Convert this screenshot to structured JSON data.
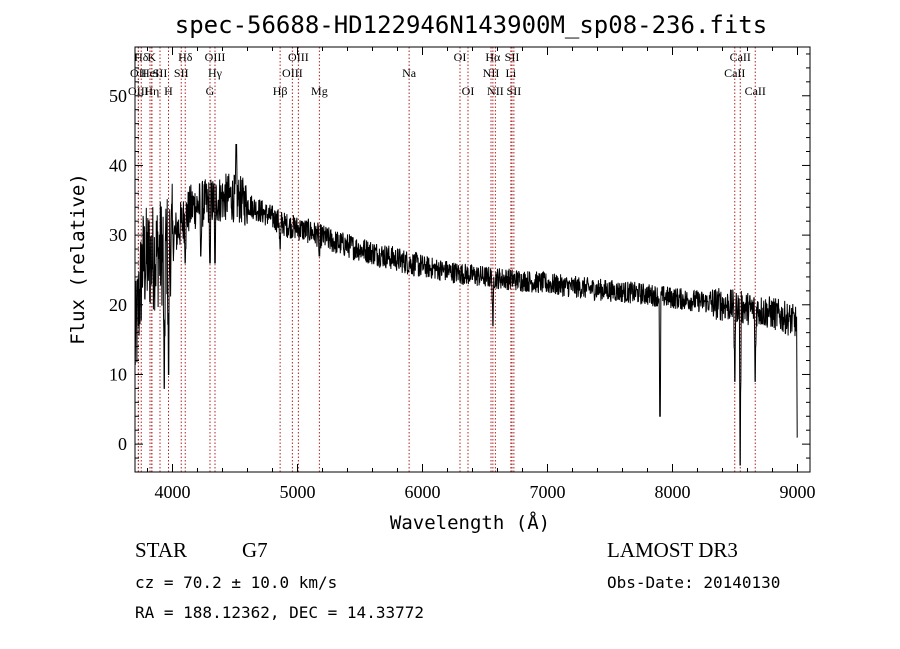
{
  "chart_data": {
    "type": "line",
    "title": "spec-56688-HD122946N143900M_sp08-236.fits",
    "xlabel": "Wavelength (Å)",
    "ylabel": "Flux (relative)",
    "xlim": [
      3700,
      9100
    ],
    "ylim": [
      -4,
      57
    ],
    "x_ticks": [
      4000,
      5000,
      6000,
      7000,
      8000,
      9000
    ],
    "x_tick_labels": [
      "4000",
      "5000",
      "6000",
      "7000",
      "8000",
      "9000"
    ],
    "y_ticks": [
      0,
      10,
      20,
      30,
      40,
      50
    ],
    "y_tick_labels": [
      "0",
      "10",
      "20",
      "30",
      "40",
      "50"
    ],
    "continuum": {
      "x": [
        3700,
        3760,
        3850,
        3950,
        4050,
        4150,
        4250,
        4350,
        4450,
        4550,
        4700,
        4900,
        5100,
        5300,
        5500,
        5700,
        6000,
        6300,
        6500,
        6800,
        7100,
        7400,
        7700,
        8000,
        8300,
        8600,
        8800,
        9000
      ],
      "y": [
        14,
        26,
        27,
        28,
        31,
        34,
        34.5,
        35,
        35.5,
        35,
        33.5,
        31.5,
        30.5,
        29,
        28,
        27,
        25.5,
        24.5,
        24,
        23.5,
        22.8,
        22.2,
        21.7,
        21,
        20.3,
        19.5,
        18.8,
        17.5
      ]
    },
    "features": [
      {
        "x": 3934,
        "y": 8
      },
      {
        "x": 3968,
        "y": 10
      },
      {
        "x": 4102,
        "y": 26
      },
      {
        "x": 4227,
        "y": 27
      },
      {
        "x": 4300,
        "y": 26
      },
      {
        "x": 4340,
        "y": 26
      },
      {
        "x": 4510,
        "y": 43
      },
      {
        "x": 4861,
        "y": 28
      },
      {
        "x": 5175,
        "y": 27
      },
      {
        "x": 6563,
        "y": 17
      },
      {
        "x": 7900,
        "y": 4
      },
      {
        "x": 8498,
        "y": 9
      },
      {
        "x": 8542,
        "y": -3
      },
      {
        "x": 8662,
        "y": 9
      },
      {
        "x": 9000,
        "y": 1
      }
    ],
    "spectral_lines": [
      {
        "label": "Hδ",
        "x": 3750,
        "row": 0
      },
      {
        "label": "OII",
        "x": 3727,
        "row": 1
      },
      {
        "label": "OIII",
        "x": 3727,
        "row": 2
      },
      {
        "label": "K",
        "x": 3834,
        "row": 0
      },
      {
        "label": "HeI",
        "x": 3820,
        "row": 1
      },
      {
        "label": "Hη",
        "x": 3835,
        "row": 2
      },
      {
        "label": "SII",
        "x": 3900,
        "row": 1
      },
      {
        "label": "H",
        "x": 3968,
        "row": 2
      },
      {
        "label": "Hδ",
        "x": 4102,
        "row": 0
      },
      {
        "label": "SII",
        "x": 4070,
        "row": 1
      },
      {
        "label": "OIII",
        "x": 4340,
        "row": 0
      },
      {
        "label": "Hγ",
        "x": 4340,
        "row": 1
      },
      {
        "label": "G",
        "x": 4300,
        "row": 2
      },
      {
        "label": "OIII",
        "x": 5007,
        "row": 0
      },
      {
        "label": "OIII",
        "x": 4959,
        "row": 1
      },
      {
        "label": "Hβ",
        "x": 4861,
        "row": 2
      },
      {
        "label": "Mg",
        "x": 5175,
        "row": 2
      },
      {
        "label": "Na",
        "x": 5893,
        "row": 1
      },
      {
        "label": "OI",
        "x": 6300,
        "row": 0
      },
      {
        "label": "OI",
        "x": 6364,
        "row": 2
      },
      {
        "label": "Hα",
        "x": 6563,
        "row": 0
      },
      {
        "label": "NII",
        "x": 6548,
        "row": 1
      },
      {
        "label": "NII",
        "x": 6583,
        "row": 2
      },
      {
        "label": "SII",
        "x": 6716,
        "row": 0
      },
      {
        "label": "Li",
        "x": 6707,
        "row": 1
      },
      {
        "label": "SII",
        "x": 6731,
        "row": 2
      },
      {
        "label": "CaII",
        "x": 8542,
        "row": 0
      },
      {
        "label": "CaII",
        "x": 8498,
        "row": 1
      },
      {
        "label": "CaII",
        "x": 8662,
        "row": 2
      }
    ],
    "marker_color": "#b22222",
    "line_color": "#000000"
  },
  "info": {
    "object_class": "STAR",
    "subclass": "G7",
    "survey": "LAMOST DR3",
    "redshift": "cz = 70.2 ± 10.0 km/s",
    "obs_date": "Obs-Date: 20140130",
    "coords": "RA = 188.12362, DEC =  14.33772"
  }
}
